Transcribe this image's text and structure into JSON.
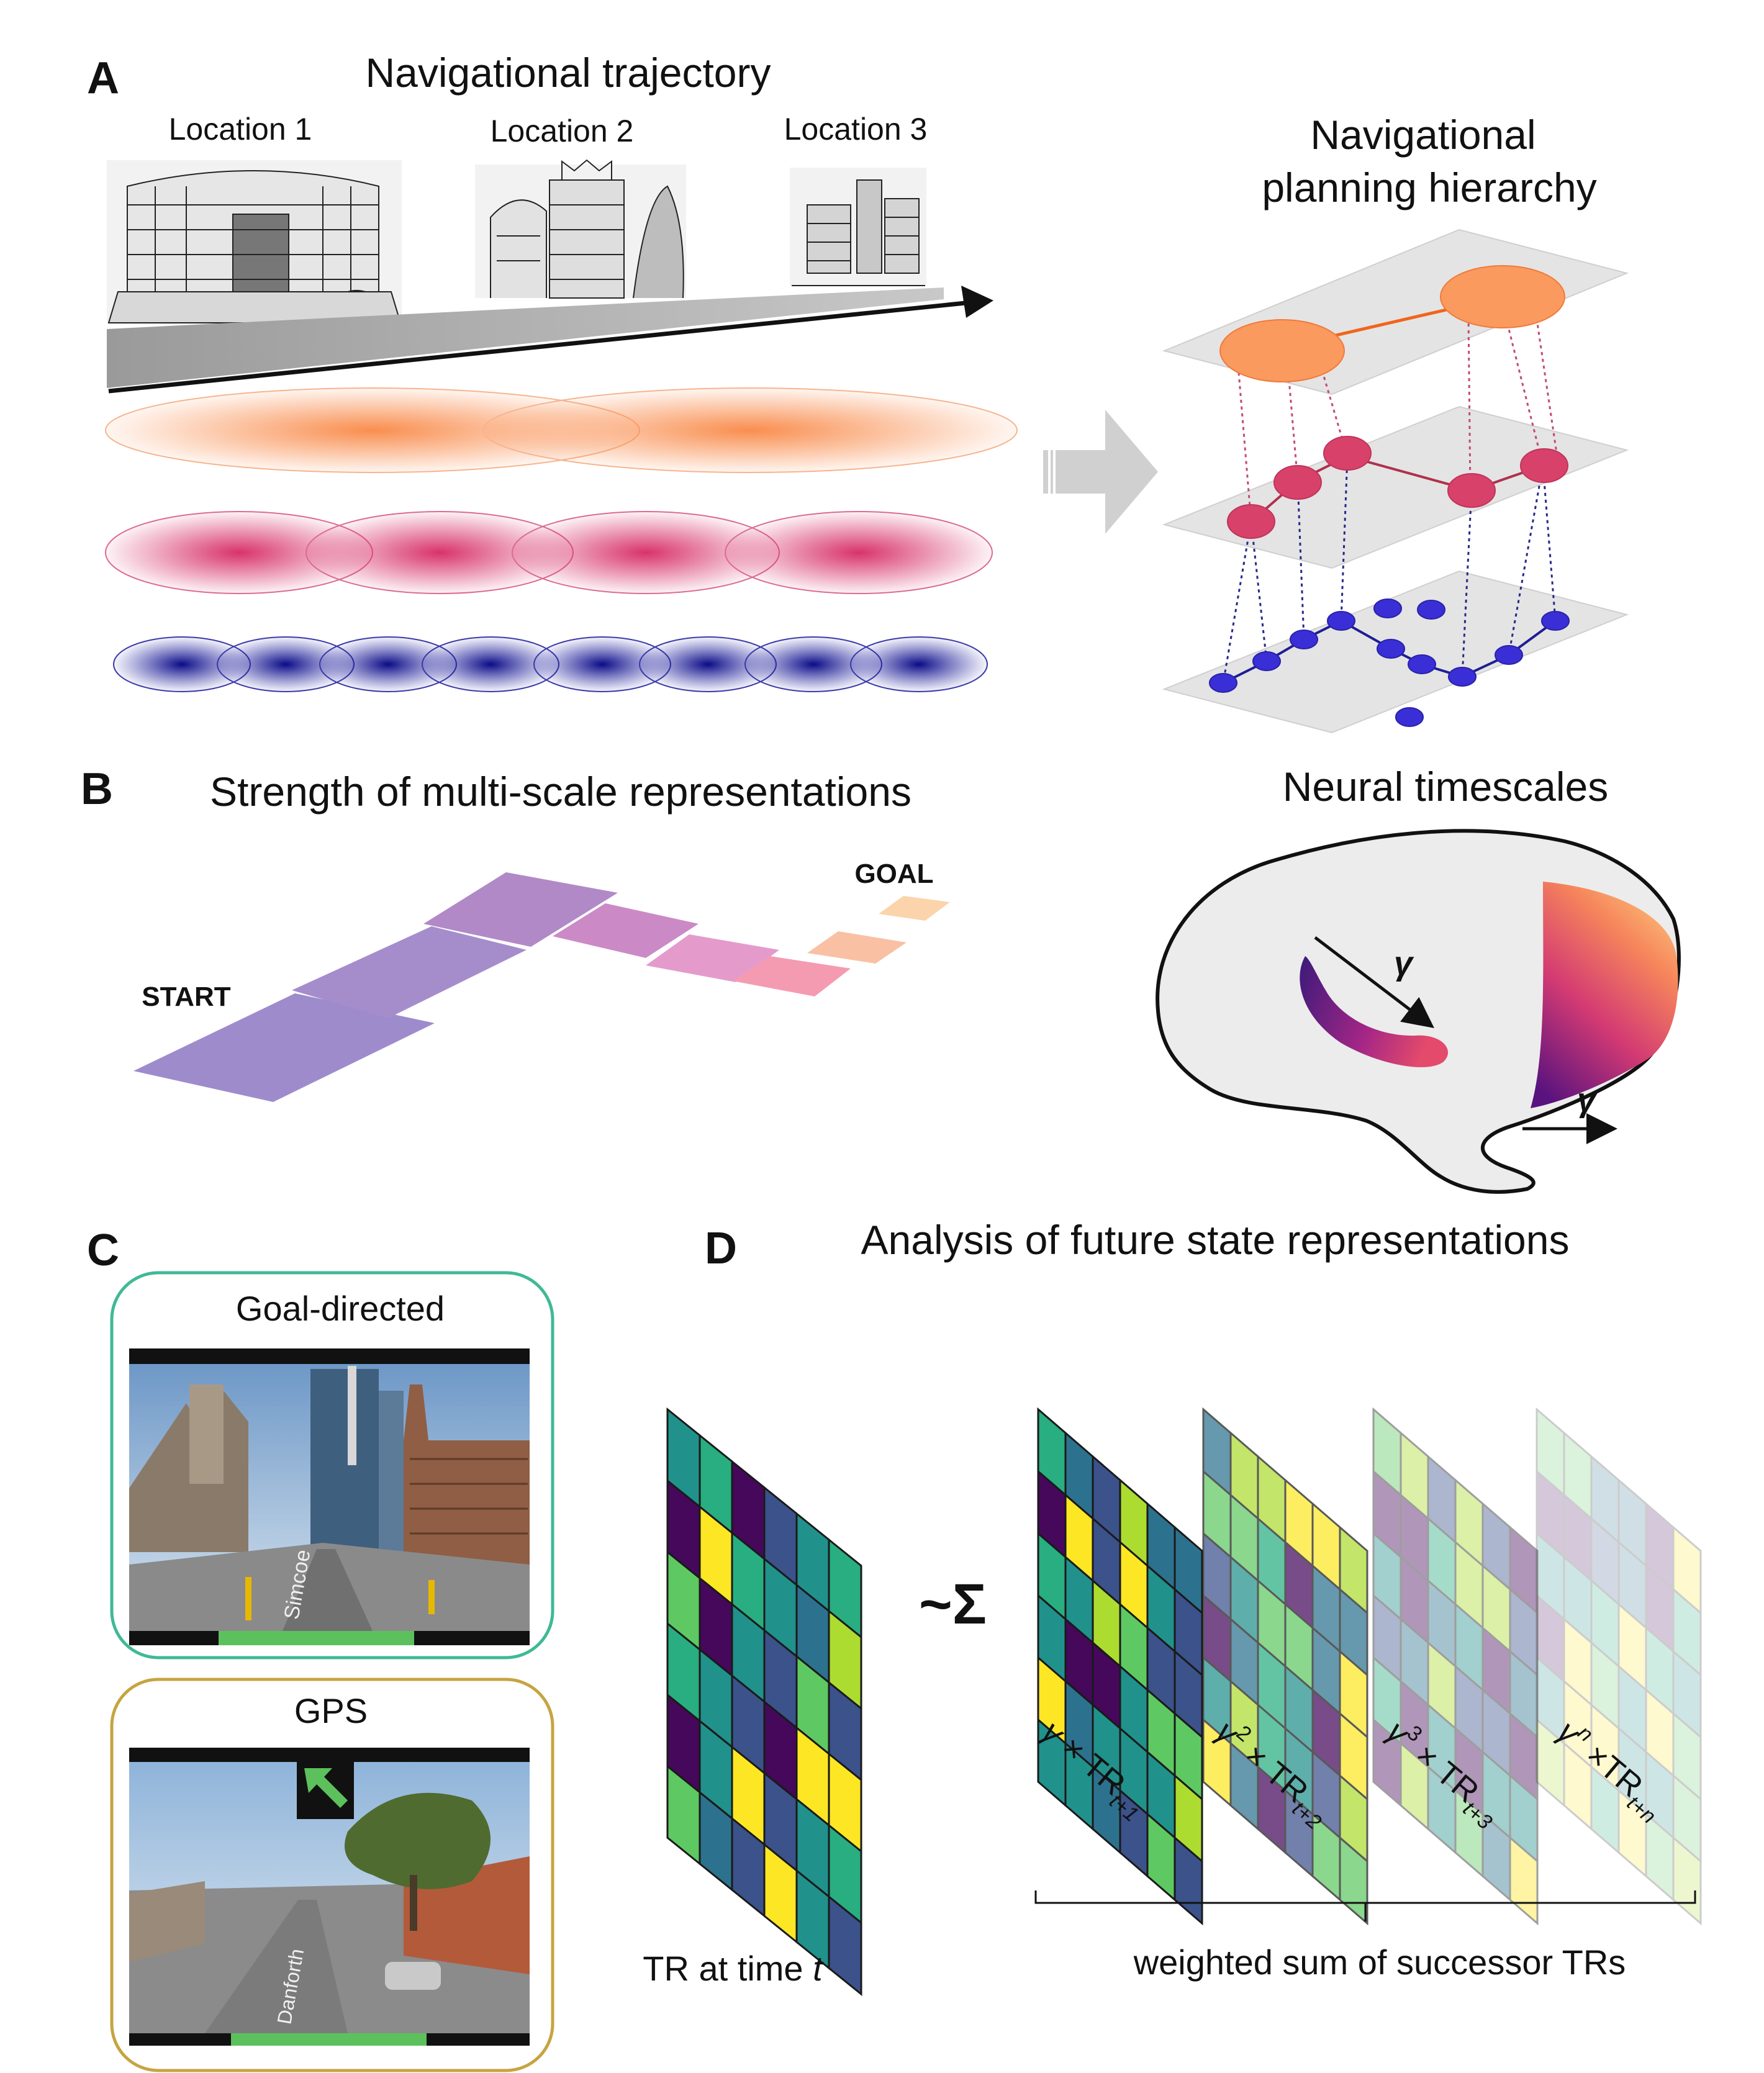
{
  "panels": {
    "a": {
      "letter": "A",
      "title": "Navigational trajectory",
      "locations": [
        "Location 1",
        "Location 2",
        "Location 3"
      ],
      "hierarchy_title_line1": "Navigational",
      "hierarchy_title_line2": "planning hierarchy"
    },
    "b": {
      "letter": "B",
      "title": "Strength of multi-scale representations",
      "start_label": "START",
      "goal_label": "GOAL",
      "timescales_title": "Neural timescales",
      "gamma_symbol": "γ"
    },
    "c": {
      "letter": "C",
      "goal_directed_label": "Goal-directed",
      "gps_label": "GPS",
      "street_sign_1": "Simcoe",
      "street_sign_2": "Danforth"
    },
    "d": {
      "letter": "D",
      "title": "Analysis of future state representations",
      "approx_sum": "~Σ",
      "tr_label": "TR at time ",
      "tr_label_var": "t",
      "weights": [
        {
          "base": "γ",
          "exp": "",
          "mid": " × TR",
          "sub": "t+1"
        },
        {
          "base": "γ",
          "exp": "2",
          "mid": " × TR",
          "sub": "t+2"
        },
        {
          "base": "γ",
          "exp": "3",
          "mid": " × TR",
          "sub": "t+3"
        },
        {
          "base": "γ",
          "exp": "n",
          "mid": " ×TR",
          "sub": "t+n"
        }
      ],
      "sum_label": "weighted sum of successor TRs"
    }
  },
  "colors": {
    "orange": "#fa9a5f",
    "crimson": "#d8426a",
    "navy": "#3a2fd6",
    "teal_frame": "#3fb996",
    "gold_frame": "#c6a441",
    "progress_green": "#5cc15c",
    "viridis": [
      "#45085b",
      "#3b528b",
      "#2c728e",
      "#21918c",
      "#28ae80",
      "#5ec962",
      "#addc30",
      "#fde725"
    ]
  }
}
